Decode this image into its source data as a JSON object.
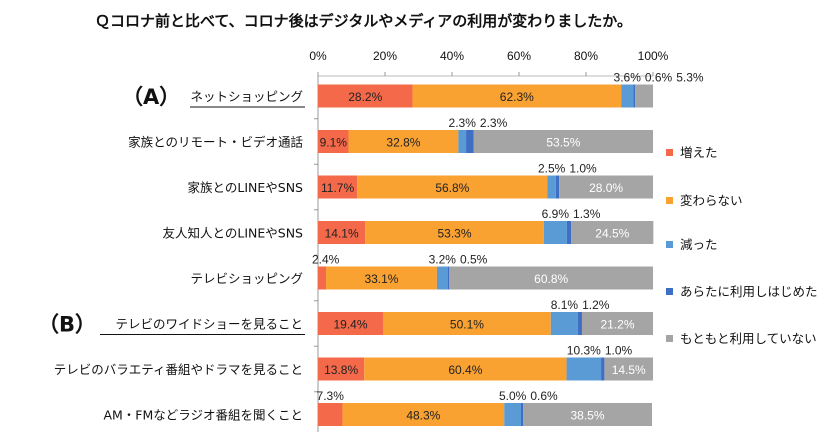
{
  "chart_data": {
    "type": "bar",
    "orientation": "horizontal-stacked-100",
    "title": "Ｑコロナ前と比べて、コロナ後はデジタルやメディアの利用が変わりましたか。",
    "xlim": [
      0,
      100
    ],
    "xticks": [
      "0%",
      "20%",
      "40%",
      "60%",
      "80%",
      "100%"
    ],
    "categories": [
      "ネットショッピング",
      "家族とのリモート・ビデオ通話",
      "家族とのLINEやSNS",
      "友人知人とのLINEやSNS",
      "テレビショッピング",
      "テレビのワイドショーを見ること",
      "テレビのバラエティ番組やドラマを見ること",
      "AM・FMなどラジオ番組を聞くこと"
    ],
    "group_marks": [
      {
        "label": "（A）",
        "category": 0
      },
      {
        "label": "（B）",
        "category": 5
      }
    ],
    "series": [
      {
        "name": "増えた",
        "color": "#F4694A",
        "values": [
          28.2,
          9.1,
          11.7,
          14.1,
          2.4,
          19.4,
          13.8,
          7.3
        ]
      },
      {
        "name": "変わらない",
        "color": "#F9A232",
        "values": [
          62.3,
          32.8,
          56.8,
          53.3,
          33.1,
          50.1,
          60.4,
          48.3
        ]
      },
      {
        "name": "減った",
        "color": "#5B9BD5",
        "values": [
          3.6,
          2.3,
          2.5,
          6.9,
          3.2,
          8.1,
          10.3,
          5.0
        ]
      },
      {
        "name": "あらたに利用しはじめた",
        "color": "#3F6FC4",
        "values": [
          0.6,
          2.3,
          1.0,
          1.3,
          0.5,
          1.2,
          1.0,
          0.6
        ]
      },
      {
        "name": "もともと利用していない",
        "color": "#A5A5A5",
        "values": [
          5.3,
          53.5,
          28.0,
          24.5,
          60.8,
          21.2,
          14.5,
          38.5
        ]
      }
    ],
    "legend_position": "right"
  }
}
